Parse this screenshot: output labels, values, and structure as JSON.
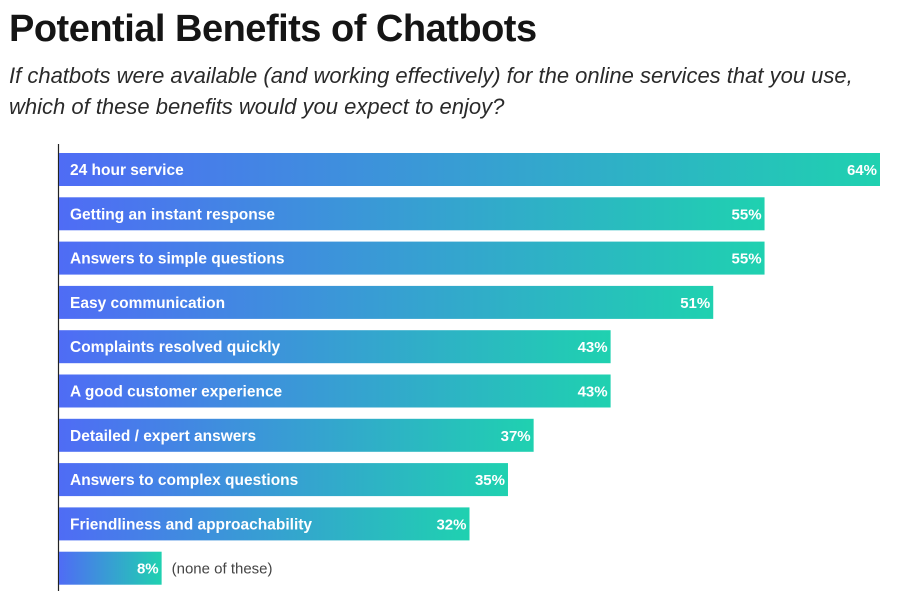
{
  "chart_data": {
    "type": "bar",
    "orientation": "horizontal",
    "title": "Potential Benefits of Chatbots",
    "subtitle": "If chatbots were available (and working effectively) for the online services that you use, which of these benefits would you expect to enjoy?",
    "categories": [
      "24 hour service",
      "Getting an instant response",
      "Answers to simple questions",
      "Easy communication",
      "Complaints resolved quickly",
      "A good customer experience",
      "Detailed / expert answers",
      "Answers to complex questions",
      "Friendliness and approachability",
      ""
    ],
    "values": [
      64,
      55,
      55,
      51,
      43,
      43,
      37,
      35,
      32,
      8
    ],
    "value_labels": [
      "64%",
      "55%",
      "55%",
      "51%",
      "43%",
      "43%",
      "37%",
      "35%",
      "32%",
      "8%"
    ],
    "annotations": [
      "",
      "",
      "",
      "",
      "",
      "",
      "",
      "",
      "",
      "(none of these)"
    ],
    "xlim": [
      0,
      64
    ],
    "gradient_colors": [
      "#4f6cf5",
      "#1fd1b0"
    ],
    "grid": false,
    "legend": "none"
  }
}
